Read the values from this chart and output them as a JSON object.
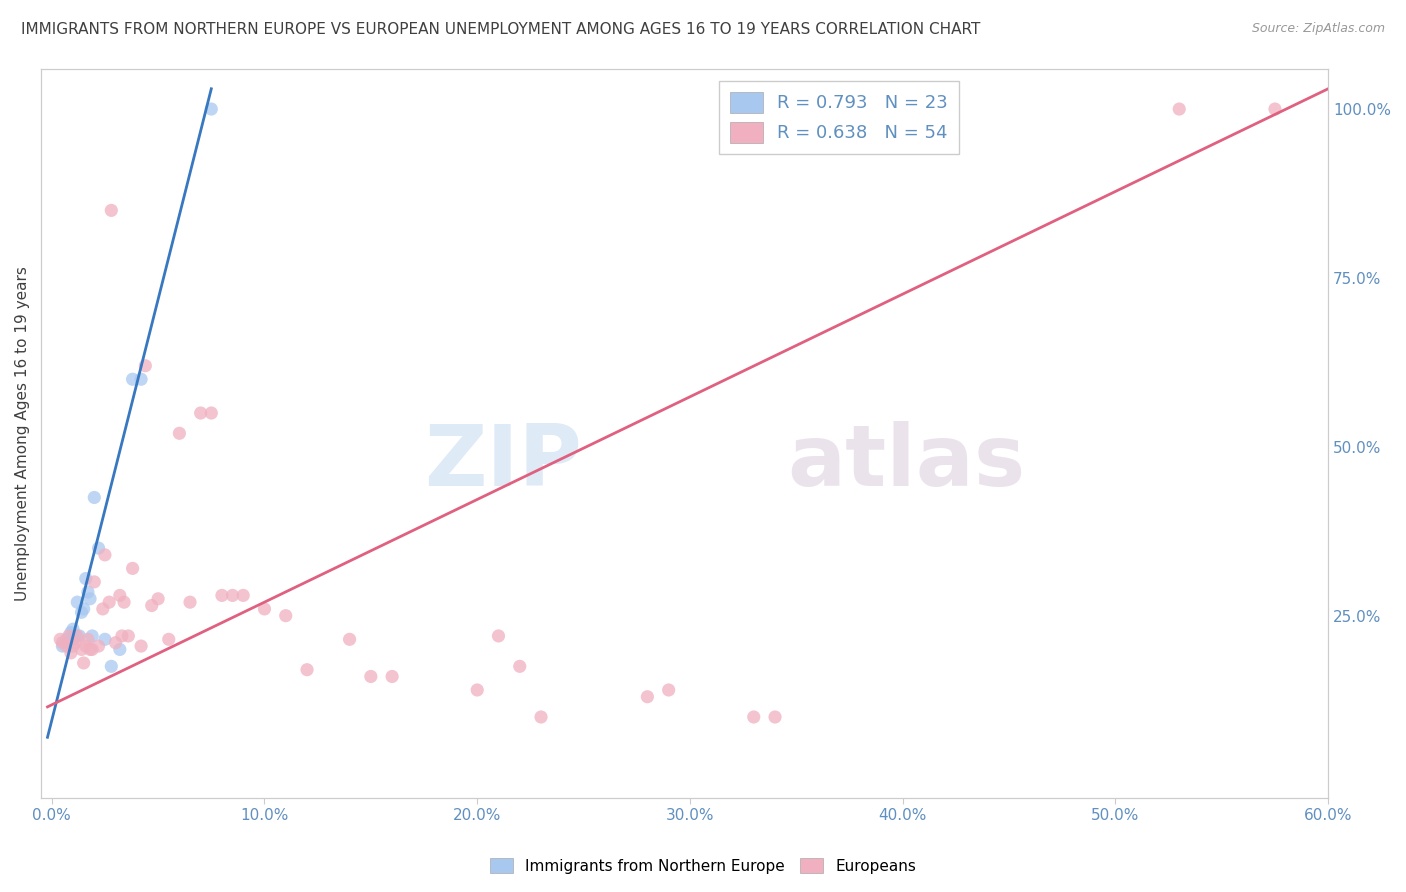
{
  "title": "IMMIGRANTS FROM NORTHERN EUROPE VS EUROPEAN UNEMPLOYMENT AMONG AGES 16 TO 19 YEARS CORRELATION CHART",
  "source": "Source: ZipAtlas.com",
  "ylabel": "Unemployment Among Ages 16 to 19 years",
  "legend_blue_r": "0.793",
  "legend_blue_n": "23",
  "legend_pink_r": "0.638",
  "legend_pink_n": "54",
  "legend_label_blue": "Immigrants from Northern Europe",
  "legend_label_pink": "Europeans",
  "watermark_zip": "ZIP",
  "watermark_atlas": "atlas",
  "blue_scatter_x": [
    0.005,
    0.007,
    0.008,
    0.009,
    0.01,
    0.01,
    0.011,
    0.012,
    0.013,
    0.014,
    0.015,
    0.016,
    0.017,
    0.018,
    0.019,
    0.02,
    0.022,
    0.025,
    0.028,
    0.032,
    0.038,
    0.042,
    0.075
  ],
  "blue_scatter_y": [
    0.205,
    0.215,
    0.21,
    0.225,
    0.215,
    0.23,
    0.22,
    0.27,
    0.22,
    0.255,
    0.26,
    0.305,
    0.285,
    0.275,
    0.22,
    0.425,
    0.35,
    0.215,
    0.175,
    0.2,
    0.6,
    0.6,
    1.0
  ],
  "pink_scatter_x": [
    0.004,
    0.005,
    0.007,
    0.008,
    0.009,
    0.01,
    0.011,
    0.012,
    0.014,
    0.015,
    0.016,
    0.017,
    0.018,
    0.019,
    0.02,
    0.022,
    0.024,
    0.025,
    0.027,
    0.028,
    0.03,
    0.032,
    0.033,
    0.034,
    0.036,
    0.038,
    0.042,
    0.044,
    0.047,
    0.05,
    0.055,
    0.06,
    0.065,
    0.07,
    0.075,
    0.08,
    0.085,
    0.09,
    0.1,
    0.11,
    0.12,
    0.14,
    0.15,
    0.16,
    0.2,
    0.21,
    0.22,
    0.23,
    0.28,
    0.29,
    0.33,
    0.34,
    0.53,
    0.575
  ],
  "pink_scatter_y": [
    0.215,
    0.21,
    0.205,
    0.22,
    0.195,
    0.205,
    0.21,
    0.22,
    0.2,
    0.18,
    0.205,
    0.215,
    0.2,
    0.2,
    0.3,
    0.205,
    0.26,
    0.34,
    0.27,
    0.85,
    0.21,
    0.28,
    0.22,
    0.27,
    0.22,
    0.32,
    0.205,
    0.62,
    0.265,
    0.275,
    0.215,
    0.52,
    0.27,
    0.55,
    0.55,
    0.28,
    0.28,
    0.28,
    0.26,
    0.25,
    0.17,
    0.215,
    0.16,
    0.16,
    0.14,
    0.22,
    0.175,
    0.1,
    0.13,
    0.14,
    0.1,
    0.1,
    1.0,
    1.0
  ],
  "blue_line_x": [
    -0.002,
    0.075
  ],
  "blue_line_y": [
    0.07,
    1.03
  ],
  "pink_line_x": [
    -0.002,
    0.6
  ],
  "pink_line_y": [
    0.115,
    1.03
  ],
  "xlim": [
    -0.005,
    0.6
  ],
  "ylim": [
    -0.02,
    1.06
  ],
  "background_color": "#ffffff",
  "blue_color": "#a8c8f0",
  "pink_color": "#f0b0c0",
  "blue_line_color": "#3878c0",
  "pink_line_color": "#e06080",
  "grid_color": "#e8e8e8",
  "axis_color": "#6090c0",
  "title_color": "#404040"
}
